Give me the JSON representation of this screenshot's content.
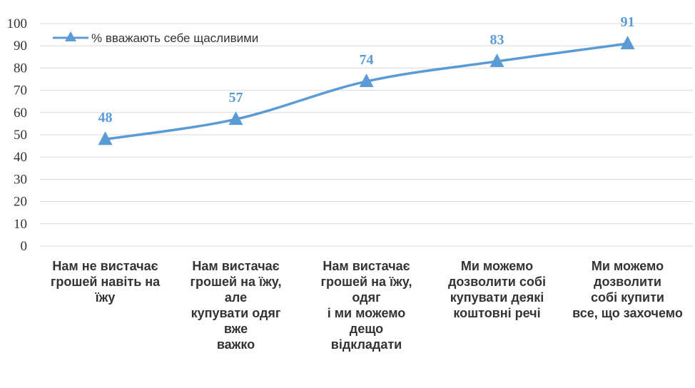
{
  "chart_data": {
    "type": "line",
    "categories": [
      "Нам не вистачає\nгрошей навіть  на\nїжу",
      "Нам вистачає\nгрошей на їжу,\nале\nкупувати одяг\nвже\nважко",
      "Нам вистачає\nгрошей на їжу,\nодяг\nі ми можемо\nдещо\nвідкладати",
      "Ми можемо\nдозволити собі\nкупувати деякі\nкоштовні речі",
      "Ми можемо\nдозволити\nсобі купити\nвсе, що захочемо"
    ],
    "series": [
      {
        "name": "% вважають себе щасливими",
        "values": [
          48,
          57,
          74,
          83,
          91
        ],
        "color": "#5b9bd5",
        "marker": "triangle"
      }
    ],
    "data_labels": [
      "48",
      "57",
      "74",
      "83",
      "91"
    ],
    "ylim": [
      0,
      100
    ],
    "yticks": [
      0,
      10,
      20,
      30,
      40,
      50,
      60,
      70,
      80,
      90,
      100
    ],
    "ytick_labels": [
      "0",
      "10",
      "20",
      "30",
      "40",
      "50",
      "60",
      "70",
      "80",
      "90",
      "100"
    ],
    "grid": true,
    "gridline_color": "#d9d9d9",
    "smooth": true,
    "legend_position": "top-left"
  }
}
